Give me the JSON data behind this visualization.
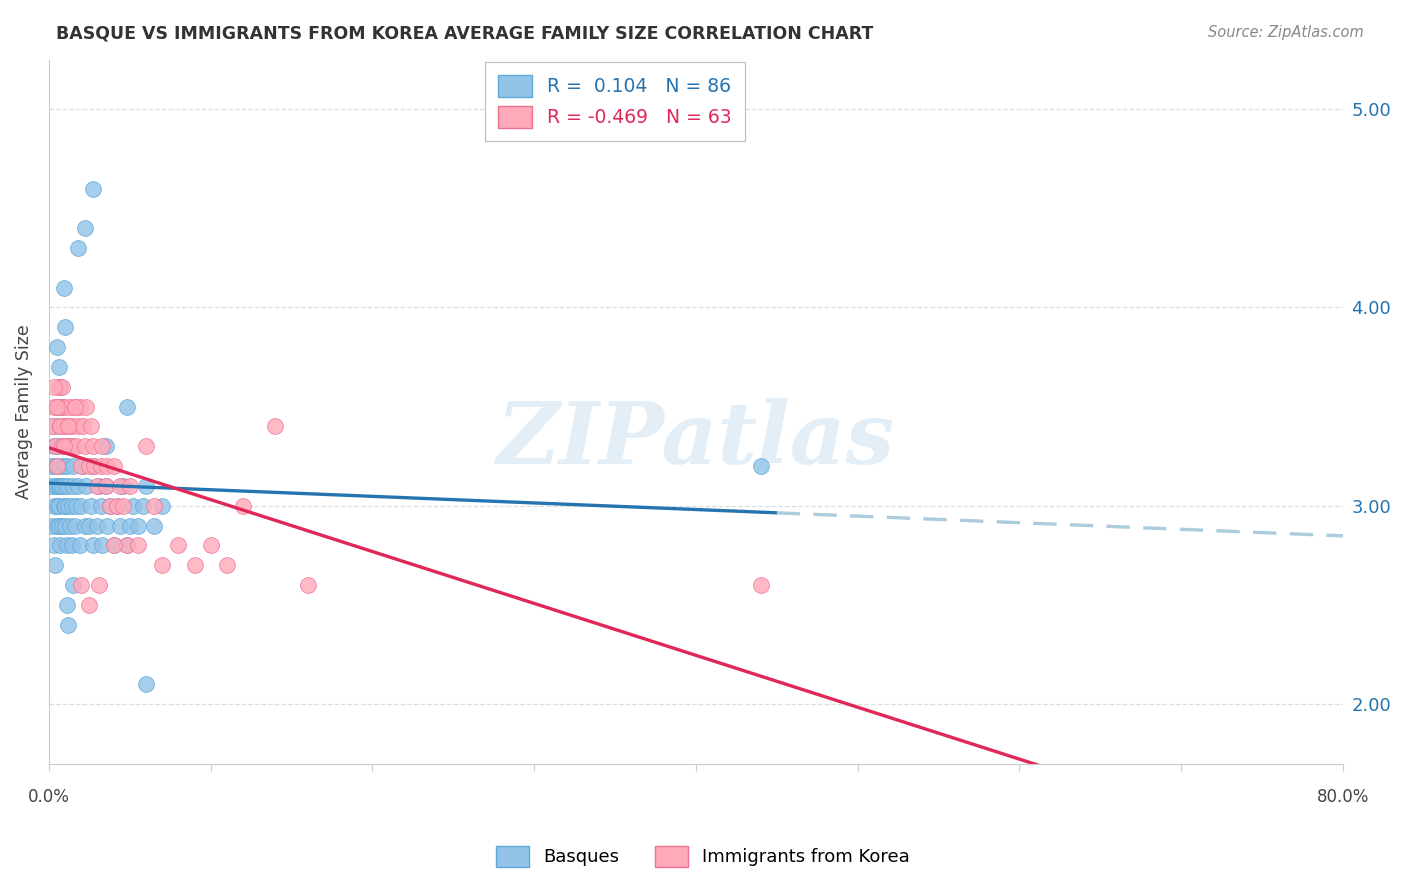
{
  "title": "BASQUE VS IMMIGRANTS FROM KOREA AVERAGE FAMILY SIZE CORRELATION CHART",
  "source": "Source: ZipAtlas.com",
  "ylabel": "Average Family Size",
  "ytick_vals": [
    2.0,
    3.0,
    4.0,
    5.0
  ],
  "xlim": [
    0.0,
    0.8
  ],
  "ylim": [
    1.7,
    5.25
  ],
  "legend1_r": "0.104",
  "legend1_n": "86",
  "legend2_r": "-0.469",
  "legend2_n": "63",
  "blue_scatter_color": "#92c3e8",
  "blue_scatter_edge": "#5fa8d8",
  "pink_scatter_color": "#ffaabb",
  "pink_scatter_edge": "#f07090",
  "blue_line_color": "#2574b0",
  "blue_dash_color": "#aaccdd",
  "pink_line_color": "#e02858",
  "watermark": "ZIPatlas",
  "watermark_color": "#cce0f0",
  "title_color": "#333333",
  "source_color": "#888888",
  "axis_label_color": "#444444",
  "right_tick_color": "#2574b0",
  "grid_color": "#dddddd",
  "R_basque": 0.104,
  "R_korea": -0.469,
  "basque_x": [
    0.001,
    0.002,
    0.002,
    0.003,
    0.003,
    0.003,
    0.004,
    0.004,
    0.004,
    0.004,
    0.005,
    0.005,
    0.005,
    0.005,
    0.005,
    0.006,
    0.006,
    0.006,
    0.007,
    0.007,
    0.007,
    0.008,
    0.008,
    0.008,
    0.009,
    0.009,
    0.01,
    0.01,
    0.01,
    0.011,
    0.011,
    0.012,
    0.012,
    0.013,
    0.013,
    0.014,
    0.014,
    0.015,
    0.015,
    0.016,
    0.017,
    0.018,
    0.019,
    0.02,
    0.021,
    0.022,
    0.023,
    0.025,
    0.026,
    0.027,
    0.028,
    0.03,
    0.031,
    0.032,
    0.033,
    0.035,
    0.036,
    0.038,
    0.04,
    0.042,
    0.044,
    0.046,
    0.048,
    0.05,
    0.052,
    0.055,
    0.058,
    0.06,
    0.065,
    0.07,
    0.005,
    0.006,
    0.007,
    0.008,
    0.009,
    0.01,
    0.011,
    0.012,
    0.015,
    0.018,
    0.022,
    0.027,
    0.035,
    0.048,
    0.06,
    0.44
  ],
  "basque_y": [
    3.1,
    3.2,
    2.9,
    3.0,
    3.3,
    2.8,
    3.1,
    3.4,
    2.7,
    3.2,
    3.0,
    3.1,
    2.9,
    3.3,
    3.5,
    3.1,
    2.9,
    3.0,
    3.1,
    2.8,
    3.2,
    3.1,
    2.9,
    3.3,
    3.0,
    3.2,
    3.0,
    2.9,
    3.1,
    3.2,
    2.8,
    3.0,
    3.1,
    2.9,
    3.3,
    3.0,
    2.8,
    3.1,
    3.2,
    2.9,
    3.0,
    3.1,
    2.8,
    3.0,
    3.2,
    2.9,
    3.1,
    2.9,
    3.0,
    2.8,
    3.2,
    2.9,
    3.1,
    3.0,
    2.8,
    3.1,
    2.9,
    3.0,
    2.8,
    3.0,
    2.9,
    3.1,
    2.8,
    2.9,
    3.0,
    2.9,
    3.0,
    3.1,
    2.9,
    3.0,
    3.8,
    3.7,
    3.6,
    3.5,
    4.1,
    3.9,
    2.5,
    2.4,
    2.6,
    4.3,
    4.4,
    4.6,
    3.3,
    3.5,
    2.1,
    3.2
  ],
  "korea_x": [
    0.002,
    0.003,
    0.004,
    0.005,
    0.006,
    0.007,
    0.007,
    0.008,
    0.008,
    0.009,
    0.01,
    0.01,
    0.011,
    0.012,
    0.013,
    0.014,
    0.015,
    0.016,
    0.017,
    0.018,
    0.019,
    0.02,
    0.021,
    0.022,
    0.023,
    0.025,
    0.026,
    0.027,
    0.028,
    0.03,
    0.032,
    0.033,
    0.035,
    0.036,
    0.038,
    0.04,
    0.042,
    0.044,
    0.046,
    0.048,
    0.05,
    0.055,
    0.06,
    0.065,
    0.07,
    0.08,
    0.09,
    0.1,
    0.11,
    0.12,
    0.14,
    0.16,
    0.44,
    0.003,
    0.005,
    0.007,
    0.009,
    0.012,
    0.016,
    0.02,
    0.025,
    0.031,
    0.04
  ],
  "korea_y": [
    3.4,
    3.5,
    3.3,
    3.2,
    3.6,
    3.4,
    3.5,
    3.3,
    3.6,
    3.4,
    3.3,
    3.5,
    3.4,
    3.3,
    3.5,
    3.4,
    3.3,
    3.5,
    3.3,
    3.4,
    3.5,
    3.2,
    3.4,
    3.3,
    3.5,
    3.2,
    3.4,
    3.3,
    3.2,
    3.1,
    3.2,
    3.3,
    3.1,
    3.2,
    3.0,
    3.2,
    3.0,
    3.1,
    3.0,
    2.8,
    3.1,
    2.8,
    3.3,
    3.0,
    2.7,
    2.8,
    2.7,
    2.8,
    2.7,
    3.0,
    3.4,
    2.6,
    2.6,
    3.6,
    3.5,
    3.4,
    3.3,
    3.4,
    3.5,
    2.6,
    2.5,
    2.6,
    2.8
  ]
}
